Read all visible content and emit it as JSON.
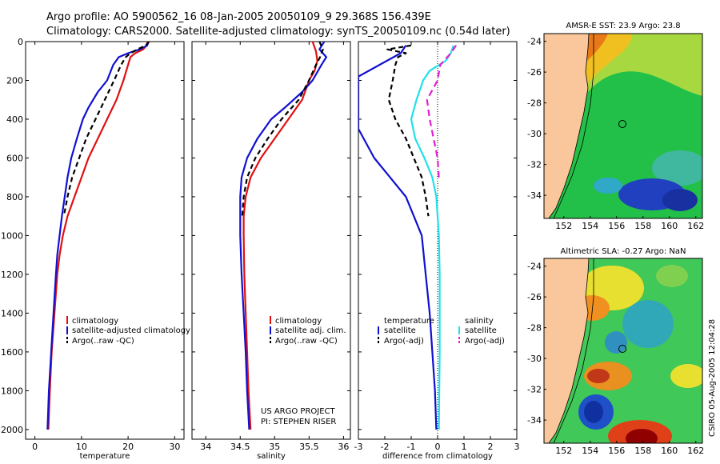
{
  "header": {
    "title_line1": "Argo profile: AO 5900562_16 08-Jan-2005 20050109_9 29.368S 156.439E",
    "title_line2": "Climatology: CARS2000. Satellite-adjusted climatology: synTS_20050109.nc (0.54d later)"
  },
  "side_stamp": "CSIRO 05-Aug-2005 12:04:28",
  "project_credit": {
    "line1": "US ARGO PROJECT",
    "line2": "PI: STEPHEN RISER"
  },
  "colors": {
    "climatology": "#e01010",
    "satellite": "#1010d0",
    "argo": "#000000",
    "salinity_satellite": "#20e0e8",
    "salinity_argo": "#e020d0"
  },
  "chart_data": [
    {
      "id": "temperature",
      "type": "line",
      "xlabel": "temperature",
      "ylabel": "",
      "xlim": [
        -2,
        32
      ],
      "ylim": [
        2050,
        0
      ],
      "xticks": [
        0,
        10,
        20,
        30
      ],
      "yticks": [
        0,
        200,
        400,
        600,
        800,
        1000,
        1200,
        1400,
        1600,
        1800,
        2000
      ],
      "legend": [
        "climatology",
        "satellite-adjusted climatology",
        "Argo(..raw -QC)"
      ],
      "series": [
        {
          "name": "climatology",
          "color": "#e01010",
          "dash": "",
          "points": [
            [
              24.2,
              0
            ],
            [
              24.0,
              20
            ],
            [
              23.2,
              40
            ],
            [
              21.5,
              60
            ],
            [
              20.5,
              80
            ],
            [
              20.0,
              120
            ],
            [
              19.0,
              200
            ],
            [
              17.5,
              300
            ],
            [
              15.5,
              400
            ],
            [
              13.5,
              500
            ],
            [
              11.5,
              600
            ],
            [
              10.0,
              700
            ],
            [
              8.5,
              800
            ],
            [
              7.0,
              900
            ],
            [
              6.0,
              1000
            ],
            [
              5.3,
              1100
            ],
            [
              4.8,
              1200
            ],
            [
              4.2,
              1400
            ],
            [
              3.6,
              1600
            ],
            [
              3.2,
              1800
            ],
            [
              2.9,
              2000
            ]
          ]
        },
        {
          "name": "satellite-adjusted climatology",
          "color": "#1010d0",
          "dash": "",
          "points": [
            [
              24.4,
              0
            ],
            [
              24.1,
              20
            ],
            [
              22.5,
              40
            ],
            [
              20.0,
              60
            ],
            [
              18.0,
              80
            ],
            [
              16.8,
              120
            ],
            [
              15.5,
              200
            ],
            [
              13.5,
              260
            ],
            [
              11.5,
              340
            ],
            [
              10.3,
              400
            ],
            [
              9.0,
              500
            ],
            [
              7.8,
              600
            ],
            [
              7.0,
              700
            ],
            [
              6.4,
              800
            ],
            [
              5.8,
              900
            ],
            [
              5.3,
              1000
            ],
            [
              4.8,
              1100
            ],
            [
              4.5,
              1200
            ],
            [
              4.0,
              1400
            ],
            [
              3.5,
              1600
            ],
            [
              3.0,
              1800
            ],
            [
              2.7,
              2000
            ]
          ]
        },
        {
          "name": "Argo(..raw -QC)",
          "color": "#000000",
          "dash": "6,4",
          "points": [
            [
              24.5,
              0
            ],
            [
              23.8,
              20
            ],
            [
              22.0,
              40
            ],
            [
              20.5,
              60
            ],
            [
              19.5,
              80
            ],
            [
              18.5,
              120
            ],
            [
              17.0,
              200
            ],
            [
              15.0,
              300
            ],
            [
              13.0,
              400
            ],
            [
              11.0,
              500
            ],
            [
              9.5,
              600
            ],
            [
              8.0,
              700
            ],
            [
              7.0,
              800
            ],
            [
              6.2,
              900
            ]
          ]
        }
      ]
    },
    {
      "id": "salinity",
      "type": "line",
      "xlabel": "salinity",
      "ylabel": "",
      "xlim": [
        33.8,
        36.1
      ],
      "ylim": [
        2050,
        0
      ],
      "xticks": [
        34,
        34.5,
        35,
        35.5,
        36
      ],
      "yticks": [
        0,
        200,
        400,
        600,
        800,
        1000,
        1200,
        1400,
        1600,
        1800,
        2000
      ],
      "legend": [
        "climatology",
        "satellite adj. clim.",
        "Argo(..raw -QC)"
      ],
      "series": [
        {
          "name": "climatology",
          "color": "#e01010",
          "dash": "",
          "points": [
            [
              35.55,
              0
            ],
            [
              35.6,
              50
            ],
            [
              35.62,
              100
            ],
            [
              35.58,
              150
            ],
            [
              35.5,
              200
            ],
            [
              35.4,
              300
            ],
            [
              35.2,
              400
            ],
            [
              35.0,
              500
            ],
            [
              34.8,
              600
            ],
            [
              34.65,
              700
            ],
            [
              34.58,
              800
            ],
            [
              34.55,
              900
            ],
            [
              34.55,
              1000
            ],
            [
              34.56,
              1200
            ],
            [
              34.58,
              1400
            ],
            [
              34.6,
              1600
            ],
            [
              34.62,
              1800
            ],
            [
              34.65,
              2000
            ]
          ]
        },
        {
          "name": "satellite adj. clim.",
          "color": "#1010d0",
          "dash": "",
          "points": [
            [
              35.72,
              0
            ],
            [
              35.65,
              40
            ],
            [
              35.75,
              80
            ],
            [
              35.68,
              120
            ],
            [
              35.55,
              200
            ],
            [
              35.4,
              260
            ],
            [
              35.15,
              340
            ],
            [
              34.95,
              400
            ],
            [
              34.75,
              500
            ],
            [
              34.6,
              600
            ],
            [
              34.52,
              700
            ],
            [
              34.5,
              800
            ],
            [
              34.5,
              900
            ],
            [
              34.5,
              1000
            ],
            [
              34.52,
              1200
            ],
            [
              34.55,
              1400
            ],
            [
              34.58,
              1600
            ],
            [
              34.6,
              1800
            ],
            [
              34.63,
              2000
            ]
          ]
        },
        {
          "name": "Argo(..raw -QC)",
          "color": "#000000",
          "dash": "6,4",
          "points": [
            [
              35.65,
              0
            ],
            [
              35.7,
              40
            ],
            [
              35.66,
              80
            ],
            [
              35.6,
              120
            ],
            [
              35.5,
              200
            ],
            [
              35.35,
              300
            ],
            [
              35.1,
              400
            ],
            [
              34.9,
              500
            ],
            [
              34.72,
              600
            ],
            [
              34.6,
              700
            ],
            [
              34.55,
              800
            ],
            [
              34.53,
              900
            ]
          ]
        }
      ]
    },
    {
      "id": "difference",
      "type": "line",
      "xlabel": "difference from climatology",
      "ylabel": "",
      "xlim": [
        -3,
        3
      ],
      "ylim": [
        2050,
        0
      ],
      "xticks": [
        -3,
        -2,
        -1,
        0,
        1,
        2,
        3
      ],
      "yticks": [
        0,
        200,
        400,
        600,
        800,
        1000,
        1200,
        1400,
        1600,
        1800,
        2000
      ],
      "legend_left_header": "temperature",
      "legend_right_header": "salinity",
      "legend": [
        "satellite",
        "Argo(-adj)",
        "satellite",
        "Argo(-adj)"
      ],
      "series": [
        {
          "name": "temperature satellite",
          "color": "#1010d0",
          "dash": "",
          "points": [
            [
              -1.2,
              20
            ],
            [
              -1.4,
              60
            ],
            [
              -3.0,
              180
            ],
            [
              -3.0,
              450
            ],
            [
              -2.4,
              600
            ],
            [
              -1.8,
              700
            ],
            [
              -1.2,
              800
            ],
            [
              -0.9,
              900
            ],
            [
              -0.6,
              1000
            ],
            [
              -0.45,
              1200
            ],
            [
              -0.3,
              1400
            ],
            [
              -0.2,
              1600
            ],
            [
              -0.1,
              1800
            ],
            [
              -0.05,
              2000
            ]
          ]
        },
        {
          "name": "temperature Argo(-adj)",
          "color": "#000000",
          "dash": "6,4",
          "points": [
            [
              -1.0,
              20
            ],
            [
              -1.9,
              40
            ],
            [
              -1.2,
              60
            ],
            [
              -1.5,
              80
            ],
            [
              -1.6,
              120
            ],
            [
              -1.7,
              200
            ],
            [
              -1.85,
              300
            ],
            [
              -1.6,
              400
            ],
            [
              -1.2,
              500
            ],
            [
              -0.9,
              600
            ],
            [
              -0.6,
              700
            ],
            [
              -0.45,
              800
            ],
            [
              -0.35,
              900
            ]
          ]
        },
        {
          "name": "salinity satellite",
          "color": "#20e0e8",
          "dash": "",
          "points": [
            [
              0.6,
              20
            ],
            [
              0.5,
              60
            ],
            [
              0.3,
              100
            ],
            [
              -0.3,
              150
            ],
            [
              -0.55,
              200
            ],
            [
              -0.8,
              300
            ],
            [
              -1.0,
              400
            ],
            [
              -0.85,
              500
            ],
            [
              -0.5,
              600
            ],
            [
              -0.2,
              700
            ],
            [
              -0.05,
              800
            ],
            [
              0.05,
              1000
            ],
            [
              0.08,
              1200
            ],
            [
              0.08,
              1600
            ],
            [
              0.05,
              2000
            ]
          ]
        },
        {
          "name": "salinity Argo(-adj)",
          "color": "#e020d0",
          "dash": "8,5",
          "points": [
            [
              0.7,
              20
            ],
            [
              0.5,
              60
            ],
            [
              0.1,
              120
            ],
            [
              0.0,
              200
            ],
            [
              -0.4,
              300
            ],
            [
              -0.3,
              400
            ],
            [
              -0.15,
              500
            ],
            [
              0.0,
              600
            ],
            [
              0.05,
              700
            ]
          ]
        }
      ]
    },
    {
      "id": "sst_map",
      "type": "heatmap",
      "title": "AMSR-E SST: 23.9 Argo: 23.8",
      "xlim": [
        150.5,
        162.5
      ],
      "ylim": [
        -35.5,
        -23.5
      ],
      "xticks": [
        152,
        154,
        156,
        158,
        160,
        162
      ],
      "yticks": [
        -24,
        -26,
        -28,
        -30,
        -32,
        -34
      ],
      "profile_marker": {
        "lon": 156.44,
        "lat": -29.37
      }
    },
    {
      "id": "sla_map",
      "type": "heatmap",
      "title": "Altimetric SLA: -0.27 Argo: NaN",
      "xlim": [
        150.5,
        162.5
      ],
      "ylim": [
        -35.5,
        -23.5
      ],
      "xticks": [
        152,
        154,
        156,
        158,
        160,
        162
      ],
      "yticks": [
        -24,
        -26,
        -28,
        -30,
        -32,
        -34
      ],
      "profile_marker": {
        "lon": 156.44,
        "lat": -29.37
      }
    }
  ]
}
